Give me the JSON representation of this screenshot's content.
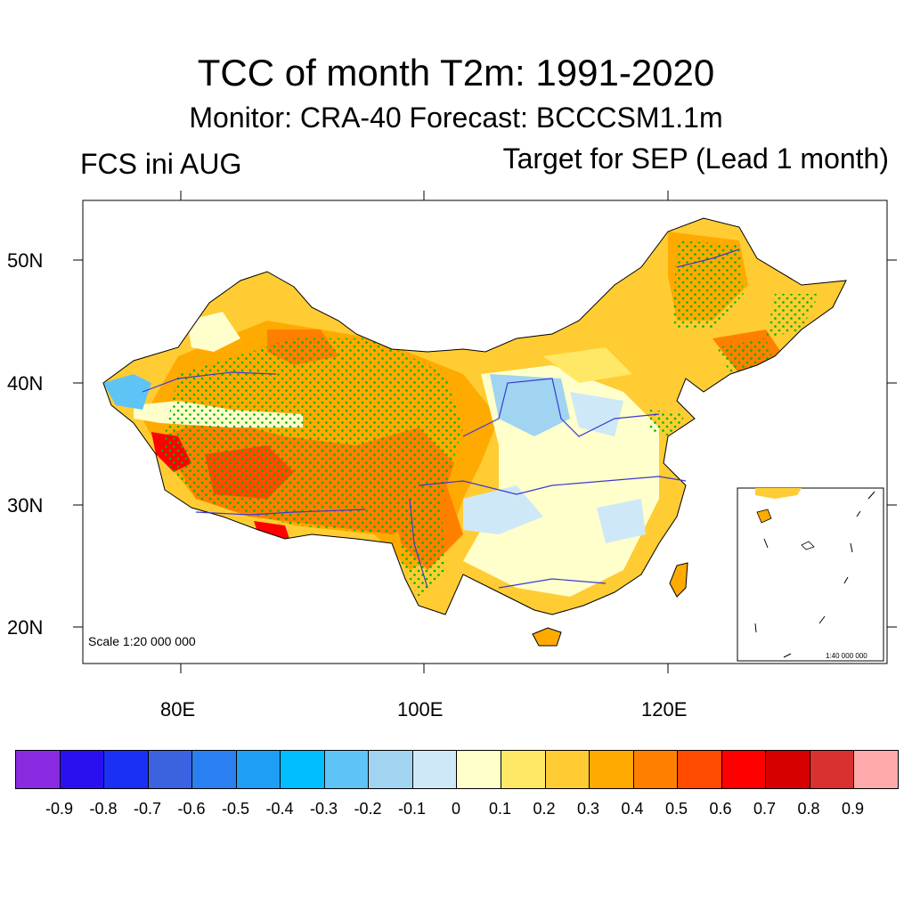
{
  "title": "TCC of month T2m: 1991-2020",
  "subtitle": "Monitor: CRA-40   Forecast: BCCCSM1.1m",
  "left_label": "FCS ini AUG",
  "right_label": "Target for SEP (Lead 1 month)",
  "scale_text": "Scale 1:20 000 000",
  "inset_scale_text": "1:40 000 000",
  "map": {
    "lat_labels": [
      "50N",
      "40N",
      "30N",
      "20N"
    ],
    "lon_labels": [
      "80E",
      "100E",
      "120E"
    ],
    "stipple_color": "#00b000",
    "river_color": "#3a3ad0"
  },
  "colorbar": {
    "colors": [
      "#8a2be2",
      "#2a10f0",
      "#1b30f5",
      "#3b63e0",
      "#2a80f0",
      "#1e9ef5",
      "#00bfff",
      "#5ec4f5",
      "#a0d4f0",
      "#cfe8f8",
      "#ffffcc",
      "#ffe866",
      "#ffcc33",
      "#ffaa00",
      "#ff8000",
      "#ff4a00",
      "#ff0000",
      "#d60000",
      "#d93030",
      "#ffaaaa"
    ],
    "tick_labels": [
      "-0.9",
      "-0.8",
      "-0.7",
      "-0.6",
      "-0.5",
      "-0.4",
      "-0.3",
      "-0.2",
      "-0.1",
      "0",
      "0.1",
      "0.2",
      "0.3",
      "0.4",
      "0.5",
      "0.6",
      "0.7",
      "0.8",
      "0.9"
    ]
  }
}
